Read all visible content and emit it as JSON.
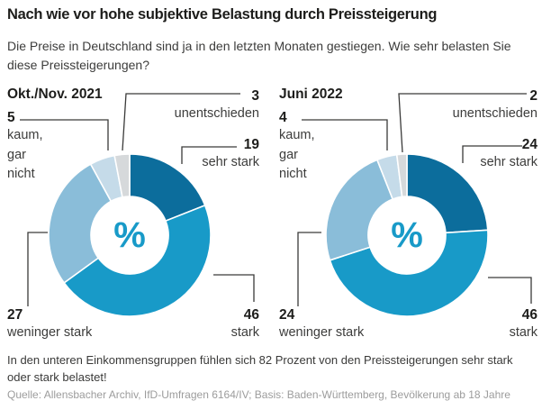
{
  "page": {
    "title": "Nach wie vor hohe subjektive Belastung durch Preissteigerung",
    "subtitle": "Die Preise in Deutschland sind ja in den letzten Monaten gestiegen. Wie sehr belasten Sie diese Preissteigerungen?",
    "note": "In den unteren Einkommensgruppen fühlen sich 82 Prozent von den Preissteigerungen sehr stark oder stark belastet!",
    "source": "Quelle: Allensbacher Archiv, IfD-Umfragen 6164/IV; Basis: Baden-Württemberg, Bevölkerung ab 18 Jahre"
  },
  "colors": {
    "sehr_stark": "#0c6d9c",
    "stark": "#189ac8",
    "weniger_stark": "#8abdd9",
    "kaum_gar_nicht": "#c5dbe9",
    "unentschieden": "#d6d9db",
    "percent_symbol": "#189ac8",
    "leader_line": "#3a3a39"
  },
  "chart_data": [
    {
      "type": "pie",
      "subtype": "donut",
      "title": "Okt./Nov. 2021",
      "center_label": "%",
      "segments": [
        {
          "label": "sehr stark",
          "value": 19,
          "color": "#0c6d9c"
        },
        {
          "label": "stark",
          "value": 46,
          "color": "#189ac8"
        },
        {
          "label": "weninger stark",
          "value": 27,
          "color": "#8abdd9"
        },
        {
          "label": "kaum, gar nicht",
          "label_lines": [
            "kaum,",
            "gar",
            "nicht"
          ],
          "value": 5,
          "color": "#c5dbe9"
        },
        {
          "label": "unentschieden",
          "value": 3,
          "color": "#d6d9db"
        }
      ]
    },
    {
      "type": "pie",
      "subtype": "donut",
      "title": "Juni 2022",
      "center_label": "%",
      "segments": [
        {
          "label": "sehr stark",
          "value": 24,
          "color": "#0c6d9c"
        },
        {
          "label": "stark",
          "value": 46,
          "color": "#189ac8"
        },
        {
          "label": "weninger stark",
          "value": 24,
          "color": "#8abdd9"
        },
        {
          "label": "kaum, gar nicht",
          "label_lines": [
            "kaum,",
            "gar",
            "nicht"
          ],
          "value": 4,
          "color": "#c5dbe9"
        },
        {
          "label": "unentschieden",
          "value": 2,
          "color": "#d6d9db"
        }
      ]
    }
  ]
}
